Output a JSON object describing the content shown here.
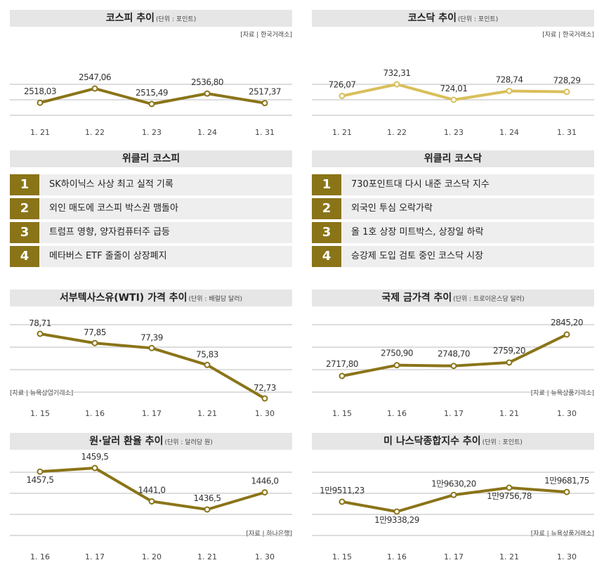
{
  "panels": {
    "kospi": {
      "title": "코스피 추이",
      "unit": "(단위 : 포인트)",
      "source": "[자료 | 한국거래소]"
    },
    "kosdaq": {
      "title": "코스닥 추이",
      "unit": "(단위 : 포인트)",
      "source": "[자료 | 한국거래소]"
    },
    "weekly_kospi": {
      "title": "위클리 코스피"
    },
    "weekly_kosdaq": {
      "title": "위클리 코스닥"
    },
    "wti": {
      "title": "서부텍사스유(WTI) 가격 추이",
      "unit": "(단위 : 배럴당 달러)",
      "source": "[자료 | 뉴욕상업거래소]"
    },
    "gold": {
      "title": "국제 금가격 추이",
      "unit": "(단위 : 트로이온스당 달러)",
      "source": "[자료 | 뉴욕상품거래소]"
    },
    "usdkrw": {
      "title": "원·달러 환율 추이",
      "unit": "(단위 : 달러당 원)",
      "source": "[자료 | 하나은행]"
    },
    "nasdaq": {
      "title": "미 나스닥종합지수 추이",
      "unit": "(단위 : 포인트)",
      "source": "[자료 | 뉴욕상품거래소]"
    }
  },
  "weekly_kospi": [
    {
      "rank": "1",
      "text": "SK하이닉스 사상 최고 실적 기록"
    },
    {
      "rank": "2",
      "text": "외인 매도에 코스피 박스권 맴돌아"
    },
    {
      "rank": "3",
      "text": "트럼프 영향, 양자컴퓨터주 급등"
    },
    {
      "rank": "4",
      "text": "메타버스 ETF 줄줄이 상장폐지"
    }
  ],
  "weekly_kosdaq": [
    {
      "rank": "1",
      "text": "730포인트대 다시 내준 코스닥 지수"
    },
    {
      "rank": "2",
      "text": "외국인 투심 오락가락"
    },
    {
      "rank": "3",
      "text": "올 1호 상장 미트박스, 상장일 하락"
    },
    {
      "rank": "4",
      "text": "승강제 도입 검토 중인 코스닥 시장"
    }
  ],
  "colors": {
    "kospi_line": "#8a7418",
    "kosdaq_line": "#d9bf5a",
    "marker_fill": "#ffffff",
    "grid": "#bbbbbb",
    "rank_bg": "#8a7418"
  },
  "chart_data": [
    {
      "id": "kospi",
      "type": "line",
      "title": "코스피 추이",
      "categories": [
        "1. 21",
        "1. 22",
        "1. 23",
        "1. 24",
        "1. 31"
      ],
      "values": [
        2518.03,
        2547.06,
        2515.49,
        2536.8,
        2517.37
      ],
      "labels": [
        "2518,03",
        "2547,06",
        "2515,49",
        "2536,80",
        "2517,37"
      ]
    },
    {
      "id": "kosdaq",
      "type": "line",
      "title": "코스닥 추이",
      "categories": [
        "1. 21",
        "1. 22",
        "1. 23",
        "1. 24",
        "1. 31"
      ],
      "values": [
        726.07,
        732.31,
        724.01,
        728.74,
        728.29
      ],
      "labels": [
        "726,07",
        "732,31",
        "724,01",
        "728,74",
        "728,29"
      ]
    },
    {
      "id": "wti",
      "type": "line",
      "title": "서부텍사스유(WTI) 가격 추이",
      "categories": [
        "1. 15",
        "1. 16",
        "1. 17",
        "1. 21",
        "1. 30"
      ],
      "values": [
        78.71,
        77.85,
        77.39,
        75.83,
        72.73
      ],
      "labels": [
        "78,71",
        "77,85",
        "77,39",
        "75,83",
        "72,73"
      ]
    },
    {
      "id": "gold",
      "type": "line",
      "title": "국제 금가격 추이",
      "categories": [
        "1. 15",
        "1. 16",
        "1. 17",
        "1. 21",
        "1. 30"
      ],
      "values": [
        2717.8,
        2750.9,
        2748.7,
        2759.2,
        2845.2
      ],
      "labels": [
        "2717,80",
        "2750,90",
        "2748,70",
        "2759,20",
        "2845,20"
      ]
    },
    {
      "id": "usdkrw",
      "type": "line",
      "title": "원·달러 환율 추이",
      "categories": [
        "1. 16",
        "1. 17",
        "1. 20",
        "1. 21",
        "1. 30"
      ],
      "values": [
        1457.5,
        1459.5,
        1441.0,
        1436.5,
        1446.0
      ],
      "labels": [
        "1457,5",
        "1459,5",
        "1441,0",
        "1436,5",
        "1446,0"
      ]
    },
    {
      "id": "nasdaq",
      "type": "line",
      "title": "미 나스닥종합지수 추이",
      "categories": [
        "1. 15",
        "1. 16",
        "1. 17",
        "1. 21",
        "1. 30"
      ],
      "values": [
        19511.23,
        19338.29,
        19630.2,
        19756.78,
        19681.75
      ],
      "labels": [
        "1만9511,23",
        "1만9338,29",
        "1만9630,20",
        "1만9756,78",
        "1만9681,75"
      ]
    }
  ]
}
